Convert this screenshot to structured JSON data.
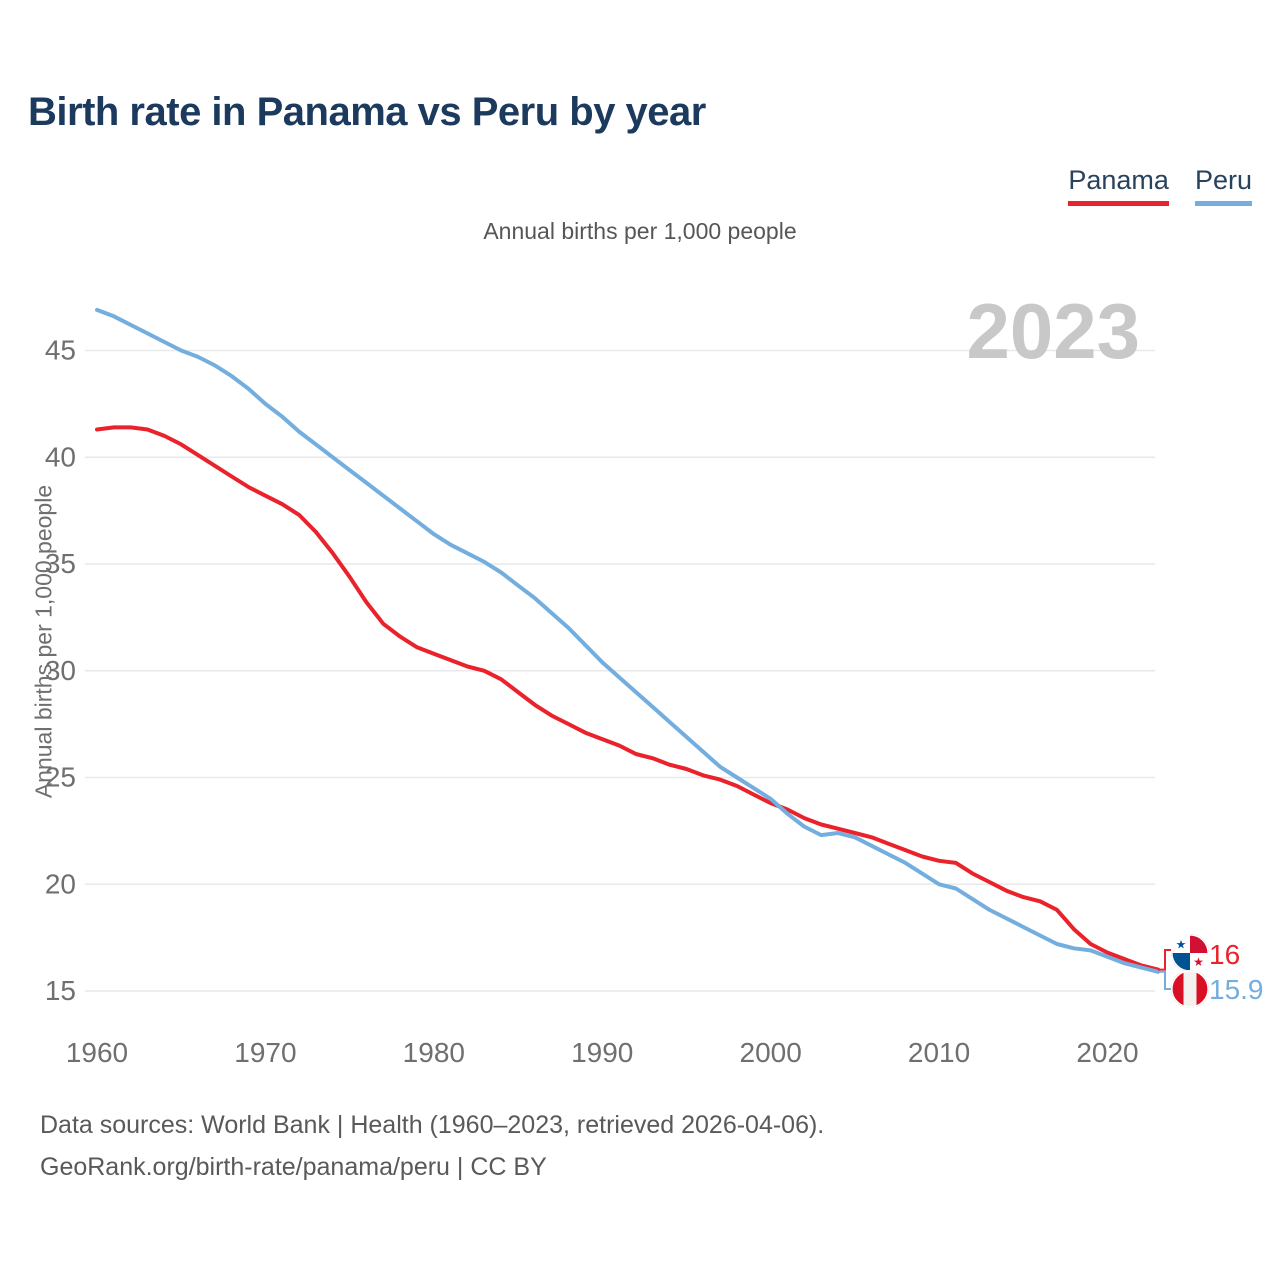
{
  "header": {
    "title": "Birth rate in Panama vs Peru by year"
  },
  "legend": [
    {
      "label": "Panama",
      "color": "#ea222b"
    },
    {
      "label": "Peru",
      "color": "#74aede"
    }
  ],
  "subtitle": "Annual births per 1,000 people",
  "watermark": "2023",
  "chart_data": {
    "type": "line",
    "title": "Annual births per 1,000 people",
    "xlabel": "",
    "ylabel": "Annual births per 1,000 people",
    "xlim": [
      1960,
      2023
    ],
    "ylim": [
      15,
      45
    ],
    "xticks": [
      1960,
      1970,
      1980,
      1990,
      2000,
      2010,
      2020
    ],
    "yticks": [
      15,
      20,
      25,
      30,
      35,
      40,
      45
    ],
    "grid": "horizontal",
    "legend_position": "top-right",
    "x": [
      1960,
      1961,
      1962,
      1963,
      1964,
      1965,
      1966,
      1967,
      1968,
      1969,
      1970,
      1971,
      1972,
      1973,
      1974,
      1975,
      1976,
      1977,
      1978,
      1979,
      1980,
      1981,
      1982,
      1983,
      1984,
      1985,
      1986,
      1987,
      1988,
      1989,
      1990,
      1991,
      1992,
      1993,
      1994,
      1995,
      1996,
      1997,
      1998,
      1999,
      2000,
      2001,
      2002,
      2003,
      2004,
      2005,
      2006,
      2007,
      2008,
      2009,
      2010,
      2011,
      2012,
      2013,
      2014,
      2015,
      2016,
      2017,
      2018,
      2019,
      2020,
      2021,
      2022,
      2023
    ],
    "series": [
      {
        "name": "Panama",
        "color": "#ea222b",
        "values": [
          41.3,
          41.4,
          41.4,
          41.3,
          41.0,
          40.6,
          40.1,
          39.6,
          39.1,
          38.6,
          38.2,
          37.8,
          37.3,
          36.5,
          35.5,
          34.4,
          33.2,
          32.2,
          31.6,
          31.1,
          30.8,
          30.5,
          30.2,
          30.0,
          29.6,
          29.0,
          28.4,
          27.9,
          27.5,
          27.1,
          26.8,
          26.5,
          26.1,
          25.9,
          25.6,
          25.4,
          25.1,
          24.9,
          24.6,
          24.2,
          23.8,
          23.5,
          23.1,
          22.8,
          22.6,
          22.4,
          22.2,
          21.9,
          21.6,
          21.3,
          21.1,
          21.0,
          20.5,
          20.1,
          19.7,
          19.4,
          19.2,
          18.8,
          17.9,
          17.2,
          16.8,
          16.5,
          16.2,
          16.0
        ]
      },
      {
        "name": "Peru",
        "color": "#74aede",
        "values": [
          46.9,
          46.6,
          46.2,
          45.8,
          45.4,
          45.0,
          44.7,
          44.3,
          43.8,
          43.2,
          42.5,
          41.9,
          41.2,
          40.6,
          40.0,
          39.4,
          38.8,
          38.2,
          37.6,
          37.0,
          36.4,
          35.9,
          35.5,
          35.1,
          34.6,
          34.0,
          33.4,
          32.7,
          32.0,
          31.2,
          30.4,
          29.7,
          29.0,
          28.3,
          27.6,
          26.9,
          26.2,
          25.5,
          25.0,
          24.5,
          24.0,
          23.3,
          22.7,
          22.3,
          22.4,
          22.2,
          21.8,
          21.4,
          21.0,
          20.5,
          20.0,
          19.8,
          19.3,
          18.8,
          18.4,
          18.0,
          17.6,
          17.2,
          17.0,
          16.9,
          16.6,
          16.3,
          16.1,
          15.9
        ]
      }
    ]
  },
  "end_labels": [
    {
      "series": "Panama",
      "value": "16",
      "flag": "panama-flag"
    },
    {
      "series": "Peru",
      "value": "15.9",
      "flag": "peru-flag"
    }
  ],
  "footer": {
    "line1": "Data sources: World Bank | Health (1960–2023, retrieved 2026-04-06).",
    "line2": "GeoRank.org/birth-rate/panama/peru | CC BY"
  },
  "colors": {
    "panama": "#ea222b",
    "peru": "#74aede",
    "title": "#1c3a5e",
    "grid": "#e9e9e9",
    "axis_text": "#6f6f6f",
    "watermark": "#c8c8c8",
    "footer_text": "#595959",
    "panama_flag_red": "#d21034",
    "panama_flag_blue": "#005293",
    "peru_flag_red": "#d91023"
  }
}
